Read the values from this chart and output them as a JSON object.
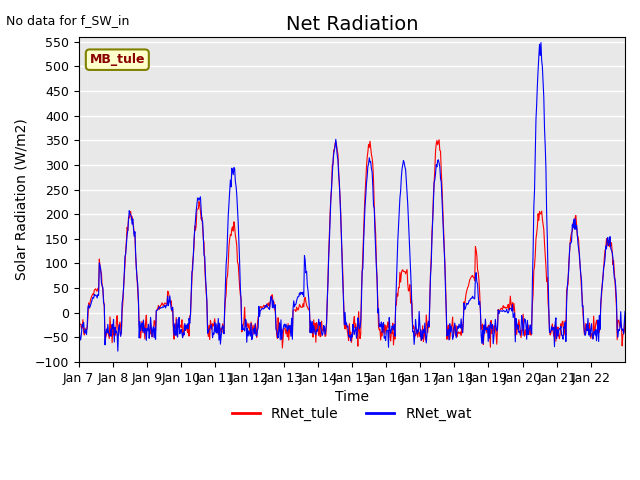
{
  "title": "Net Radiation",
  "note": "No data for f_SW_in",
  "ylabel": "Solar Radiation (W/m2)",
  "xlabel": "Time",
  "ylim": [
    -100,
    560
  ],
  "yticks": [
    -100,
    -50,
    0,
    50,
    100,
    150,
    200,
    250,
    300,
    350,
    400,
    450,
    500,
    550
  ],
  "xtick_labels": [
    "Jan 7",
    "Jan 8",
    "Jan 9",
    "Jan 10",
    "Jan 11",
    "Jan 12",
    "Jan 13",
    "Jan 14",
    "Jan 15",
    "Jan 16",
    "Jan 17",
    "Jan 18",
    "Jan 19",
    "Jan 20",
    "Jan 21",
    "Jan 22"
  ],
  "legend_labels": [
    "RNet_tule",
    "RNet_wat"
  ],
  "line_colors": [
    "red",
    "blue"
  ],
  "site_label": "MB_tule",
  "axes_bg_color": "#e8e8e8",
  "grid_color": "white",
  "title_fontsize": 14,
  "label_fontsize": 10,
  "tick_fontsize": 9,
  "peaks_tule": [
    120,
    200,
    40,
    220,
    175,
    40,
    30,
    345,
    350,
    85,
    350,
    185,
    30,
    200,
    190,
    150
  ],
  "peaks_wat": [
    120,
    200,
    40,
    230,
    295,
    40,
    130,
    340,
    310,
    300,
    315,
    100,
    10,
    540,
    185,
    150
  ],
  "n_days": 16,
  "pts_per_day": 48
}
